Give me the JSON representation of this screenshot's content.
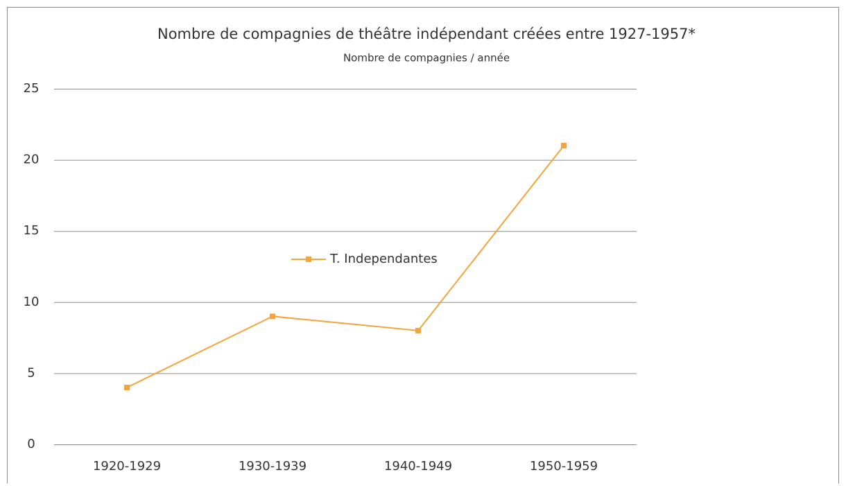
{
  "chart_data": {
    "type": "line",
    "title": "Nombre de compagnies de théâtre indépendant créées entre 1927-1957*",
    "subtitle": "Nombre de compagnies / année",
    "categories": [
      "1920-1929",
      "1930-1939",
      "1940-1949",
      "1950-1959"
    ],
    "series": [
      {
        "name": "T. Independantes",
        "color": "#f5a33b",
        "values": [
          4,
          9,
          8,
          21
        ]
      }
    ],
    "ylim": [
      0,
      25
    ],
    "yticks": [
      0,
      5,
      10,
      15,
      20,
      25
    ],
    "grid": true,
    "legend": "center"
  }
}
